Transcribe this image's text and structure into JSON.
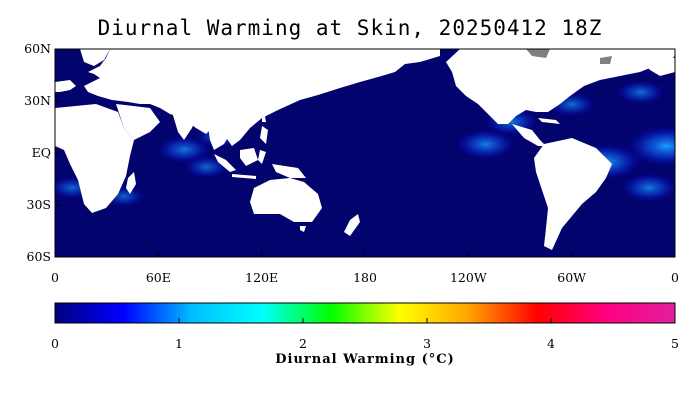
{
  "title": "Diurnal Warming at Skin, 20250412 18Z",
  "map": {
    "lat_labels": [
      "60N",
      "30N",
      "EQ",
      "30S",
      "60S"
    ],
    "lon_labels": [
      "0",
      "60E",
      "120E",
      "180",
      "120W",
      "60W",
      "0"
    ],
    "lat_range": [
      -60,
      60
    ],
    "lon_range": [
      0,
      360
    ],
    "ocean_color": "#03036e",
    "land_color": "#ffffff",
    "ice_color": "#7f7f7f",
    "warm_spots": [
      {
        "lon": 75,
        "lat": 2,
        "level": 1.2
      },
      {
        "lon": 95,
        "lat": 10,
        "level": 1.0
      },
      {
        "lon": 88,
        "lat": -8,
        "level": 0.9
      },
      {
        "lon": 40,
        "lat": -25,
        "level": 0.8
      },
      {
        "lon": 250,
        "lat": 5,
        "level": 1.4
      },
      {
        "lon": 265,
        "lat": 18,
        "level": 1.2
      },
      {
        "lon": 280,
        "lat": 35,
        "level": 1.1
      },
      {
        "lon": 300,
        "lat": 28,
        "level": 1.0
      },
      {
        "lon": 320,
        "lat": -5,
        "level": 1.8
      },
      {
        "lon": 355,
        "lat": 4,
        "level": 2.1
      },
      {
        "lon": 345,
        "lat": -20,
        "level": 1.3
      },
      {
        "lon": 10,
        "lat": -20,
        "level": 0.9
      },
      {
        "lon": 340,
        "lat": 35,
        "level": 1.0
      }
    ]
  },
  "colorbar": {
    "ticks": [
      "0",
      "1",
      "2",
      "3",
      "4",
      "5"
    ],
    "label": "Diurnal Warming (°C)",
    "range": [
      0,
      5
    ],
    "stops": [
      "#000080",
      "#0000ff",
      "#00bfff",
      "#00ffff",
      "#00ff00",
      "#ffff00",
      "#ffa500",
      "#ff0000",
      "#ff0080",
      "#e020a0"
    ]
  }
}
